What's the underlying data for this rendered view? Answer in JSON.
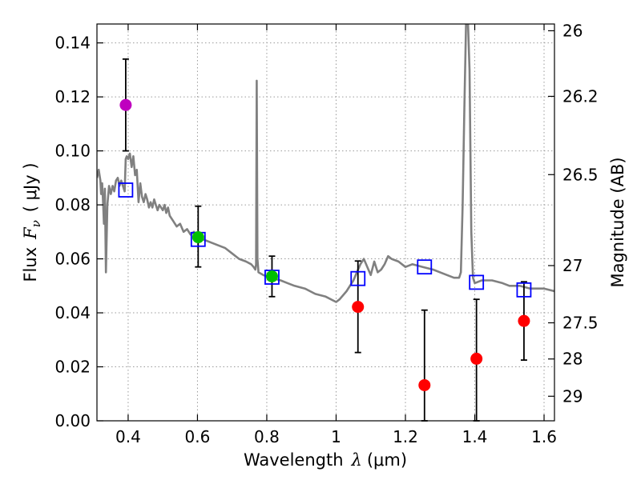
{
  "chart_data": {
    "type": "scatter",
    "xlabel": "Wavelength  λ (μm)",
    "ylabel": "Flux  F_ν  ( μJy )",
    "ylabel_parts": {
      "flux": "Flux",
      "symbol": "F",
      "subscript": "ν",
      "unit": "( μJy )"
    },
    "xlabel_parts": {
      "word": "Wavelength",
      "symbol": "λ",
      "unit": "(μm)"
    },
    "y2label": "Magnitude (AB)",
    "xlim": [
      0.31,
      1.63
    ],
    "ylim": [
      0.0,
      0.147
    ],
    "grid": true,
    "x_ticks": [
      0.4,
      0.6,
      0.8,
      1.0,
      1.2,
      1.4,
      1.6
    ],
    "x_tick_labels": [
      "0.4",
      "0.6",
      "0.8",
      "1",
      "1.2",
      "1.4",
      "1.6"
    ],
    "y_ticks": [
      0.0,
      0.02,
      0.04,
      0.06,
      0.08,
      0.1,
      0.12,
      0.14
    ],
    "y_tick_labels": [
      "0.00",
      "0.02",
      "0.04",
      "0.06",
      "0.08",
      "0.10",
      "0.12",
      "0.14"
    ],
    "y2_ticks": [
      {
        "label": "26",
        "flux": 0.1445
      },
      {
        "label": "26.2",
        "flux": 0.1202
      },
      {
        "label": "26.5",
        "flux": 0.0912
      },
      {
        "label": "27",
        "flux": 0.0575
      },
      {
        "label": "27.5",
        "flux": 0.0363
      },
      {
        "label": "28",
        "flux": 0.0229
      },
      {
        "label": "29",
        "flux": 0.0091
      }
    ],
    "model_sed": {
      "name": "model SED",
      "color": "#808080",
      "points": [
        [
          0.31,
          0.09
        ],
        [
          0.315,
          0.093
        ],
        [
          0.32,
          0.089
        ],
        [
          0.322,
          0.084
        ],
        [
          0.325,
          0.088
        ],
        [
          0.328,
          0.08
        ],
        [
          0.33,
          0.073
        ],
        [
          0.333,
          0.086
        ],
        [
          0.336,
          0.055
        ],
        [
          0.34,
          0.08
        ],
        [
          0.345,
          0.087
        ],
        [
          0.35,
          0.084
        ],
        [
          0.355,
          0.087
        ],
        [
          0.36,
          0.085
        ],
        [
          0.365,
          0.089
        ],
        [
          0.37,
          0.09
        ],
        [
          0.375,
          0.087
        ],
        [
          0.38,
          0.089
        ],
        [
          0.385,
          0.087
        ],
        [
          0.39,
          0.085
        ],
        [
          0.393,
          0.097
        ],
        [
          0.396,
          0.098
        ],
        [
          0.4,
          0.097
        ],
        [
          0.405,
          0.099
        ],
        [
          0.41,
          0.094
        ],
        [
          0.415,
          0.098
        ],
        [
          0.42,
          0.091
        ],
        [
          0.425,
          0.093
        ],
        [
          0.43,
          0.081
        ],
        [
          0.435,
          0.088
        ],
        [
          0.44,
          0.083
        ],
        [
          0.445,
          0.081
        ],
        [
          0.45,
          0.084
        ],
        [
          0.455,
          0.082
        ],
        [
          0.46,
          0.079
        ],
        [
          0.465,
          0.081
        ],
        [
          0.47,
          0.079
        ],
        [
          0.475,
          0.082
        ],
        [
          0.48,
          0.08
        ],
        [
          0.485,
          0.078
        ],
        [
          0.49,
          0.08
        ],
        [
          0.5,
          0.078
        ],
        [
          0.505,
          0.08
        ],
        [
          0.51,
          0.077
        ],
        [
          0.515,
          0.079
        ],
        [
          0.52,
          0.076
        ],
        [
          0.53,
          0.074
        ],
        [
          0.54,
          0.072
        ],
        [
          0.55,
          0.073
        ],
        [
          0.56,
          0.07
        ],
        [
          0.57,
          0.071
        ],
        [
          0.58,
          0.069
        ],
        [
          0.59,
          0.07
        ],
        [
          0.6,
          0.068
        ],
        [
          0.62,
          0.067
        ],
        [
          0.64,
          0.066
        ],
        [
          0.66,
          0.065
        ],
        [
          0.68,
          0.064
        ],
        [
          0.7,
          0.062
        ],
        [
          0.72,
          0.06
        ],
        [
          0.74,
          0.059
        ],
        [
          0.755,
          0.058
        ],
        [
          0.762,
          0.057
        ],
        [
          0.767,
          0.056
        ],
        [
          0.769,
          0.058
        ],
        [
          0.771,
          0.126
        ],
        [
          0.773,
          0.06
        ],
        [
          0.776,
          0.055
        ],
        [
          0.79,
          0.054
        ],
        [
          0.81,
          0.053
        ],
        [
          0.84,
          0.052
        ],
        [
          0.86,
          0.051
        ],
        [
          0.88,
          0.05
        ],
        [
          0.91,
          0.049
        ],
        [
          0.94,
          0.047
        ],
        [
          0.97,
          0.046
        ],
        [
          1.0,
          0.044
        ],
        [
          1.01,
          0.045
        ],
        [
          1.03,
          0.048
        ],
        [
          1.05,
          0.052
        ],
        [
          1.06,
          0.055
        ],
        [
          1.07,
          0.058
        ],
        [
          1.08,
          0.06
        ],
        [
          1.09,
          0.057
        ],
        [
          1.1,
          0.054
        ],
        [
          1.11,
          0.059
        ],
        [
          1.12,
          0.055
        ],
        [
          1.13,
          0.056
        ],
        [
          1.14,
          0.058
        ],
        [
          1.15,
          0.061
        ],
        [
          1.16,
          0.06
        ],
        [
          1.18,
          0.059
        ],
        [
          1.2,
          0.057
        ],
        [
          1.22,
          0.058
        ],
        [
          1.25,
          0.057
        ],
        [
          1.28,
          0.056
        ],
        [
          1.3,
          0.055
        ],
        [
          1.32,
          0.054
        ],
        [
          1.34,
          0.053
        ],
        [
          1.355,
          0.053
        ],
        [
          1.36,
          0.055
        ],
        [
          1.365,
          0.08
        ],
        [
          1.37,
          0.115
        ],
        [
          1.375,
          0.148
        ],
        [
          1.38,
          0.149
        ],
        [
          1.385,
          0.13
        ],
        [
          1.39,
          0.07
        ],
        [
          1.395,
          0.053
        ],
        [
          1.4,
          0.051
        ],
        [
          1.42,
          0.052
        ],
        [
          1.45,
          0.052
        ],
        [
          1.48,
          0.051
        ],
        [
          1.5,
          0.05
        ],
        [
          1.53,
          0.05
        ],
        [
          1.56,
          0.049
        ],
        [
          1.6,
          0.049
        ],
        [
          1.63,
          0.048
        ]
      ]
    },
    "model_bandpass": {
      "name": "model band fluxes",
      "marker": "open-square",
      "color": "#0000ff",
      "points": [
        {
          "x": 0.393,
          "y": 0.0855
        },
        {
          "x": 0.602,
          "y": 0.0672
        },
        {
          "x": 0.815,
          "y": 0.0532
        },
        {
          "x": 1.063,
          "y": 0.0527
        },
        {
          "x": 1.255,
          "y": 0.057
        },
        {
          "x": 1.405,
          "y": 0.0513
        },
        {
          "x": 1.542,
          "y": 0.0485
        }
      ]
    },
    "observed": {
      "name": "observed photometry",
      "marker": "filled-circle",
      "points": [
        {
          "x": 0.393,
          "y": 0.117,
          "err_low": 0.1,
          "err_high": 0.134,
          "color": "#bf00bf"
        },
        {
          "x": 0.602,
          "y": 0.068,
          "err_low": 0.057,
          "err_high": 0.0795,
          "color": "#00bf00"
        },
        {
          "x": 0.815,
          "y": 0.0535,
          "err_low": 0.046,
          "err_high": 0.061,
          "color": "#00bf00"
        },
        {
          "x": 1.063,
          "y": 0.0422,
          "err_low": 0.0253,
          "err_high": 0.0592,
          "color": "#ff0000"
        },
        {
          "x": 1.255,
          "y": 0.0132,
          "err_low": 0.0,
          "err_high": 0.041,
          "color": "#ff0000"
        },
        {
          "x": 1.405,
          "y": 0.023,
          "err_low": 0.0,
          "err_high": 0.045,
          "color": "#ff0000"
        },
        {
          "x": 1.542,
          "y": 0.037,
          "err_low": 0.0225,
          "err_high": 0.0515,
          "color": "#ff0000"
        }
      ]
    }
  }
}
